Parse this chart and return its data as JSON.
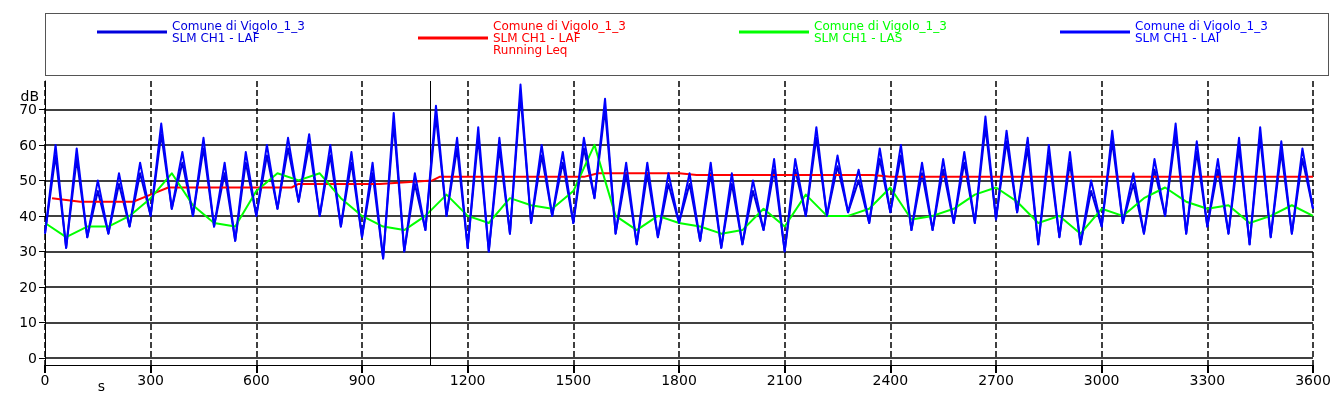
{
  "chart_data": {
    "type": "line",
    "xlabel": "s",
    "ylabel": "dB",
    "xlim": [
      0,
      3600
    ],
    "xticks": [
      0,
      300,
      600,
      900,
      1200,
      1500,
      1800,
      2100,
      2400,
      2700,
      3000,
      3300,
      3600
    ],
    "ylim": [
      -2,
      78
    ],
    "yticks": [
      0,
      10,
      20,
      30,
      40,
      50,
      60,
      70
    ],
    "grid": true,
    "legend": "top",
    "marker": "none",
    "line_style": "solid",
    "ref_lines": [
      {
        "axis": "x",
        "value": 1095,
        "color": "#000000"
      }
    ],
    "series": [
      {
        "name": "Comune di Vigolo_1_3\nSLM CH1 - LAF",
        "color": "#0000dd",
        "x": [
          0,
          30,
          60,
          90,
          120,
          150,
          180,
          210,
          240,
          270,
          300,
          330,
          360,
          390,
          420,
          450,
          480,
          510,
          540,
          570,
          600,
          630,
          660,
          690,
          720,
          750,
          780,
          810,
          840,
          870,
          900,
          930,
          960,
          990,
          1020,
          1050,
          1080,
          1110,
          1140,
          1170,
          1200,
          1230,
          1260,
          1290,
          1320,
          1350,
          1380,
          1410,
          1440,
          1470,
          1500,
          1530,
          1560,
          1590,
          1620,
          1650,
          1680,
          1710,
          1740,
          1770,
          1800,
          1830,
          1860,
          1890,
          1920,
          1950,
          1980,
          2010,
          2040,
          2070,
          2100,
          2130,
          2160,
          2190,
          2220,
          2250,
          2280,
          2310,
          2340,
          2370,
          2400,
          2430,
          2460,
          2490,
          2520,
          2550,
          2580,
          2610,
          2640,
          2670,
          2700,
          2730,
          2760,
          2790,
          2820,
          2850,
          2880,
          2910,
          2940,
          2970,
          3000,
          3030,
          3060,
          3090,
          3120,
          3150,
          3180,
          3210,
          3240,
          3270,
          3300,
          3330,
          3360,
          3390,
          3420,
          3450,
          3480,
          3510,
          3540,
          3570,
          3600
        ],
        "values": [
          35,
          57,
          31,
          56,
          34,
          47,
          35,
          49,
          37,
          52,
          40,
          63,
          42,
          55,
          40,
          59,
          37,
          52,
          33,
          55,
          40,
          57,
          42,
          59,
          44,
          60,
          40,
          57,
          37,
          55,
          34,
          52,
          28,
          66,
          30,
          49,
          36,
          68,
          40,
          59,
          31,
          62,
          30,
          59,
          35,
          74,
          38,
          57,
          40,
          55,
          38,
          59,
          45,
          70,
          35,
          52,
          32,
          52,
          34,
          49,
          38,
          49,
          33,
          52,
          31,
          49,
          32,
          47,
          36,
          53,
          30,
          53,
          40,
          62,
          40,
          54,
          41,
          50,
          38,
          56,
          41,
          57,
          36,
          52,
          36,
          53,
          38,
          55,
          38,
          65,
          39,
          61,
          41,
          59,
          32,
          57,
          34,
          55,
          32,
          47,
          37,
          61,
          38,
          49,
          35,
          53,
          40,
          63,
          35,
          58,
          37,
          53,
          35,
          59,
          32,
          62,
          34,
          58,
          35,
          56,
          42
        ]
      },
      {
        "name": "Comune di Vigolo_1_3\nSLM CH1 - LAF\nRunning Leq",
        "color": "#ff0000",
        "x": [
          20,
          100,
          250,
          300,
          350,
          700,
          720,
          950,
          1100,
          1120,
          1530,
          1570,
          1800,
          1850,
          2350,
          2400,
          3600
        ],
        "values": [
          45,
          44,
          44,
          46,
          48,
          48,
          49,
          49,
          50,
          51,
          51,
          52,
          52,
          51.5,
          51.5,
          51,
          51
        ]
      },
      {
        "name": "Comune di Vigolo_1_3\nSLM CH1 - LAS",
        "color": "#00ff00",
        "x": [
          0,
          60,
          120,
          180,
          240,
          300,
          360,
          420,
          480,
          540,
          600,
          660,
          720,
          780,
          840,
          900,
          960,
          1020,
          1080,
          1140,
          1200,
          1260,
          1320,
          1380,
          1440,
          1500,
          1560,
          1620,
          1680,
          1740,
          1800,
          1860,
          1920,
          1980,
          2040,
          2100,
          2160,
          2220,
          2280,
          2340,
          2400,
          2460,
          2520,
          2580,
          2640,
          2700,
          2760,
          2820,
          2880,
          2940,
          3000,
          3060,
          3120,
          3180,
          3240,
          3300,
          3360,
          3420,
          3480,
          3540,
          3600
        ],
        "values": [
          38,
          34,
          37,
          37,
          40,
          45,
          52,
          43,
          38,
          37,
          47,
          52,
          50,
          52,
          45,
          40,
          37,
          36,
          40,
          46,
          40,
          38,
          45,
          43,
          42,
          47,
          60,
          40,
          36,
          40,
          38,
          37,
          35,
          36,
          42,
          37,
          46,
          40,
          40,
          42,
          48,
          39,
          40,
          42,
          46,
          48,
          44,
          38,
          40,
          35,
          42,
          40,
          45,
          48,
          44,
          42,
          43,
          38,
          40,
          43,
          40
        ]
      },
      {
        "name": "Comune di Vigolo_1_3\nSLM CH1 - LAI",
        "color": "#0000ff",
        "x": [
          0,
          30,
          60,
          90,
          120,
          150,
          180,
          210,
          240,
          270,
          300,
          330,
          360,
          390,
          420,
          450,
          480,
          510,
          540,
          570,
          600,
          630,
          660,
          690,
          720,
          750,
          780,
          810,
          840,
          870,
          900,
          930,
          960,
          990,
          1020,
          1050,
          1080,
          1110,
          1140,
          1170,
          1200,
          1230,
          1260,
          1290,
          1320,
          1350,
          1380,
          1410,
          1440,
          1470,
          1500,
          1530,
          1560,
          1590,
          1620,
          1650,
          1680,
          1710,
          1740,
          1770,
          1800,
          1830,
          1860,
          1890,
          1920,
          1950,
          1980,
          2010,
          2040,
          2070,
          2100,
          2130,
          2160,
          2190,
          2220,
          2250,
          2280,
          2310,
          2340,
          2370,
          2400,
          2430,
          2460,
          2490,
          2520,
          2550,
          2580,
          2610,
          2640,
          2670,
          2700,
          2730,
          2760,
          2790,
          2820,
          2850,
          2880,
          2910,
          2940,
          2970,
          3000,
          3030,
          3060,
          3090,
          3120,
          3150,
          3180,
          3210,
          3240,
          3270,
          3300,
          3330,
          3360,
          3390,
          3420,
          3450,
          3480,
          3510,
          3540,
          3570,
          3600
        ],
        "values": [
          35,
          60,
          31,
          59,
          34,
          50,
          35,
          52,
          37,
          55,
          40,
          66,
          42,
          58,
          40,
          62,
          37,
          55,
          33,
          58,
          40,
          60,
          42,
          62,
          44,
          63,
          40,
          60,
          37,
          58,
          34,
          55,
          28,
          69,
          30,
          52,
          36,
          71,
          40,
          62,
          31,
          65,
          30,
          62,
          35,
          77,
          38,
          60,
          40,
          58,
          38,
          62,
          45,
          73,
          35,
          55,
          32,
          55,
          34,
          52,
          38,
          52,
          33,
          55,
          31,
          52,
          32,
          50,
          36,
          56,
          30,
          56,
          40,
          65,
          40,
          57,
          41,
          53,
          38,
          59,
          41,
          60,
          36,
          55,
          36,
          56,
          38,
          58,
          38,
          68,
          39,
          64,
          41,
          62,
          32,
          60,
          34,
          58,
          32,
          50,
          37,
          64,
          38,
          52,
          35,
          56,
          40,
          66,
          35,
          61,
          37,
          56,
          35,
          62,
          32,
          65,
          34,
          61,
          35,
          59,
          42
        ]
      }
    ]
  }
}
